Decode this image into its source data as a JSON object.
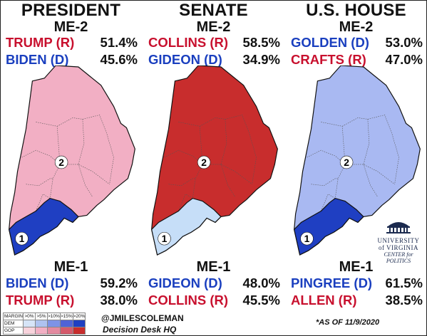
{
  "columns": [
    {
      "title": "PRESIDENT",
      "top": {
        "label": "ME-2",
        "rows": [
          {
            "candidate": "TRUMP (R)",
            "pct": "51.4%",
            "party": "R"
          },
          {
            "candidate": "BIDEN (D)",
            "pct": "45.6%",
            "party": "D"
          }
        ]
      },
      "bottom": {
        "label": "ME-1",
        "rows": [
          {
            "candidate": "BIDEN (D)",
            "pct": "59.2%",
            "party": "D"
          },
          {
            "candidate": "TRUMP (R)",
            "pct": "38.0%",
            "party": "R"
          }
        ]
      },
      "map": {
        "district_2_fill": "#f2afc4",
        "district_1_fill": "#1f3fc2"
      }
    },
    {
      "title": "SENATE",
      "top": {
        "label": "ME-2",
        "rows": [
          {
            "candidate": "COLLINS (R)",
            "pct": "58.5%",
            "party": "R"
          },
          {
            "candidate": "GIDEON (D)",
            "pct": "34.9%",
            "party": "D"
          }
        ]
      },
      "bottom": {
        "label": "ME-1",
        "rows": [
          {
            "candidate": "GIDEON (D)",
            "pct": "48.0%",
            "party": "D"
          },
          {
            "candidate": "COLLINS (R)",
            "pct": "45.5%",
            "party": "R"
          }
        ]
      },
      "map": {
        "district_2_fill": "#c82d2d",
        "district_1_fill": "#c6def8"
      }
    },
    {
      "title": "U.S. HOUSE",
      "top": {
        "label": "ME-2",
        "rows": [
          {
            "candidate": "GOLDEN (D)",
            "pct": "53.0%",
            "party": "D"
          },
          {
            "candidate": "CRAFTS (R)",
            "pct": "47.0%",
            "party": "R"
          }
        ]
      },
      "bottom": {
        "label": "ME-1",
        "rows": [
          {
            "candidate": "PINGREE (D)",
            "pct": "61.5%",
            "party": "D"
          },
          {
            "candidate": "ALLEN (R)",
            "pct": "38.5%",
            "party": "R"
          }
        ]
      },
      "map": {
        "district_2_fill": "#a9b9f2",
        "district_1_fill": "#1f3fc2"
      }
    }
  ],
  "district_numbers": {
    "d1": "1",
    "d2": "2"
  },
  "legend": {
    "header": [
      "MARGIN",
      ">0%",
      ">5%",
      ">10%",
      ">15%",
      ">20%"
    ],
    "rows": [
      {
        "label": "DEM",
        "colors": [
          "#d6e4f7",
          "#aec2f0",
          "#7d93e6",
          "#4f63d6",
          "#1f3fc2"
        ]
      },
      {
        "label": "GOP",
        "colors": [
          "#f8d3dc",
          "#f2afc4",
          "#e38aa0",
          "#d45a6b",
          "#c82d2d"
        ]
      }
    ]
  },
  "credit": "@JMILESCOLEMAN",
  "source": "Decision Desk HQ",
  "as_of": "*AS OF 11/9/2020",
  "logo": {
    "name_line1": "UNIVERSITY",
    "name_line2": "of VIRGINIA",
    "sub": "CENTER for POLITICS"
  },
  "colors": {
    "rep_text": "#c8102e",
    "dem_text": "#1a3fbf"
  }
}
